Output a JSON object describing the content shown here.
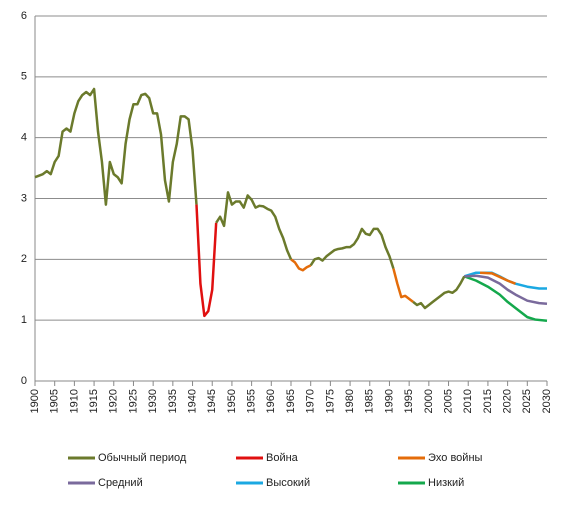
{
  "chart_data": {
    "type": "line",
    "xlim": [
      1900,
      2030
    ],
    "xticks": [
      1900,
      1905,
      1910,
      1915,
      1920,
      1925,
      1930,
      1935,
      1940,
      1945,
      1950,
      1955,
      1960,
      1965,
      1970,
      1975,
      1980,
      1985,
      1990,
      1995,
      2000,
      2005,
      2010,
      2015,
      2020,
      2025,
      2030
    ],
    "ylim": [
      0,
      6
    ],
    "yticks": [
      0,
      1,
      2,
      3,
      4,
      5,
      6
    ],
    "grid": true,
    "series": [
      {
        "name": "Обычный период",
        "color": "#6b7a2c",
        "x": [
          1900,
          1902,
          1903,
          1904,
          1905,
          1906,
          1907,
          1908,
          1909,
          1910,
          1911,
          1912,
          1913,
          1914,
          1915,
          1916,
          1917,
          1918,
          1919,
          1920,
          1921,
          1922,
          1923,
          1924,
          1925,
          1926,
          1927,
          1928,
          1929,
          1930,
          1931,
          1932,
          1933,
          1934,
          1935,
          1936,
          1937,
          1938,
          1939,
          1940,
          1941,
          1943,
          1946,
          1947,
          1948,
          1949,
          1950,
          1951,
          1952,
          1953,
          1954,
          1955,
          1956,
          1957,
          1958,
          1959,
          1960,
          1961,
          1962,
          1963,
          1964,
          1965,
          1968,
          1970,
          1971,
          1972,
          1973,
          1974,
          1975,
          1976,
          1977,
          1978,
          1979,
          1980,
          1981,
          1982,
          1983,
          1984,
          1985,
          1986,
          1987,
          1988,
          1989,
          1990,
          1991,
          1994,
          1996,
          1997,
          1998,
          1999,
          2000,
          2001,
          2002,
          2003,
          2004,
          2005,
          2006,
          2007,
          2008,
          2009
        ],
        "values": [
          3.35,
          3.4,
          3.45,
          3.4,
          3.6,
          3.7,
          4.1,
          4.15,
          4.1,
          4.4,
          4.6,
          4.7,
          4.75,
          4.7,
          4.8,
          4.1,
          3.6,
          2.9,
          3.6,
          3.4,
          3.35,
          3.25,
          3.9,
          4.3,
          4.55,
          4.55,
          4.7,
          4.72,
          4.65,
          4.4,
          4.4,
          4.05,
          3.3,
          2.95,
          3.6,
          3.9,
          4.35,
          4.35,
          4.3,
          3.8,
          2.9,
          null,
          2.6,
          2.7,
          2.55,
          3.1,
          2.9,
          2.95,
          2.95,
          2.85,
          3.05,
          2.98,
          2.85,
          2.88,
          2.87,
          2.83,
          2.8,
          2.7,
          2.5,
          2.35,
          2.15,
          2.0,
          null,
          1.9,
          2.0,
          2.02,
          1.98,
          2.05,
          2.1,
          2.15,
          2.17,
          2.18,
          2.2,
          2.2,
          2.25,
          2.35,
          2.5,
          2.42,
          2.4,
          2.5,
          2.5,
          2.4,
          2.2,
          2.05,
          1.85,
          null,
          1.3,
          1.25,
          1.28,
          1.2,
          1.25,
          1.3,
          1.35,
          1.4,
          1.45,
          1.47,
          1.45,
          1.5,
          1.6,
          1.72
        ]
      },
      {
        "name": "Война",
        "color": "#e01010",
        "x": [
          1941,
          1942,
          1943,
          1944,
          1945,
          1946
        ],
        "values": [
          2.9,
          1.6,
          1.07,
          1.15,
          1.5,
          2.6
        ]
      },
      {
        "name": "Эхо войны",
        "color": "#e46c0a",
        "x": [
          1965,
          1966,
          1967,
          1968,
          1969,
          1970,
          1980,
          1991,
          1992,
          1993,
          1994,
          1995,
          1996,
          2005,
          2013,
          2016,
          2020,
          2022
        ],
        "values": [
          2.0,
          1.95,
          1.85,
          1.82,
          1.87,
          1.9,
          null,
          1.85,
          1.6,
          1.38,
          1.4,
          1.35,
          1.3,
          null,
          1.78,
          1.77,
          1.65,
          1.6
        ]
      },
      {
        "name": "Средний",
        "color": "#7a6a9c",
        "x": [
          2009,
          2012,
          2015,
          2018,
          2020,
          2022,
          2025,
          2028,
          2030
        ],
        "values": [
          1.72,
          1.73,
          1.7,
          1.6,
          1.5,
          1.42,
          1.32,
          1.28,
          1.27
        ]
      },
      {
        "name": "Высокий",
        "color": "#1ba8e2",
        "x": [
          2009,
          2012,
          2016,
          2018,
          2020,
          2022,
          2025,
          2028,
          2030
        ],
        "values": [
          1.72,
          1.78,
          1.78,
          1.72,
          1.65,
          1.6,
          1.55,
          1.52,
          1.52
        ]
      },
      {
        "name": "Низкий",
        "color": "#14a84c",
        "x": [
          2009,
          2012,
          2015,
          2018,
          2020,
          2022,
          2025,
          2027,
          2030
        ],
        "values": [
          1.72,
          1.65,
          1.55,
          1.42,
          1.3,
          1.2,
          1.05,
          1.01,
          0.99
        ]
      }
    ]
  }
}
